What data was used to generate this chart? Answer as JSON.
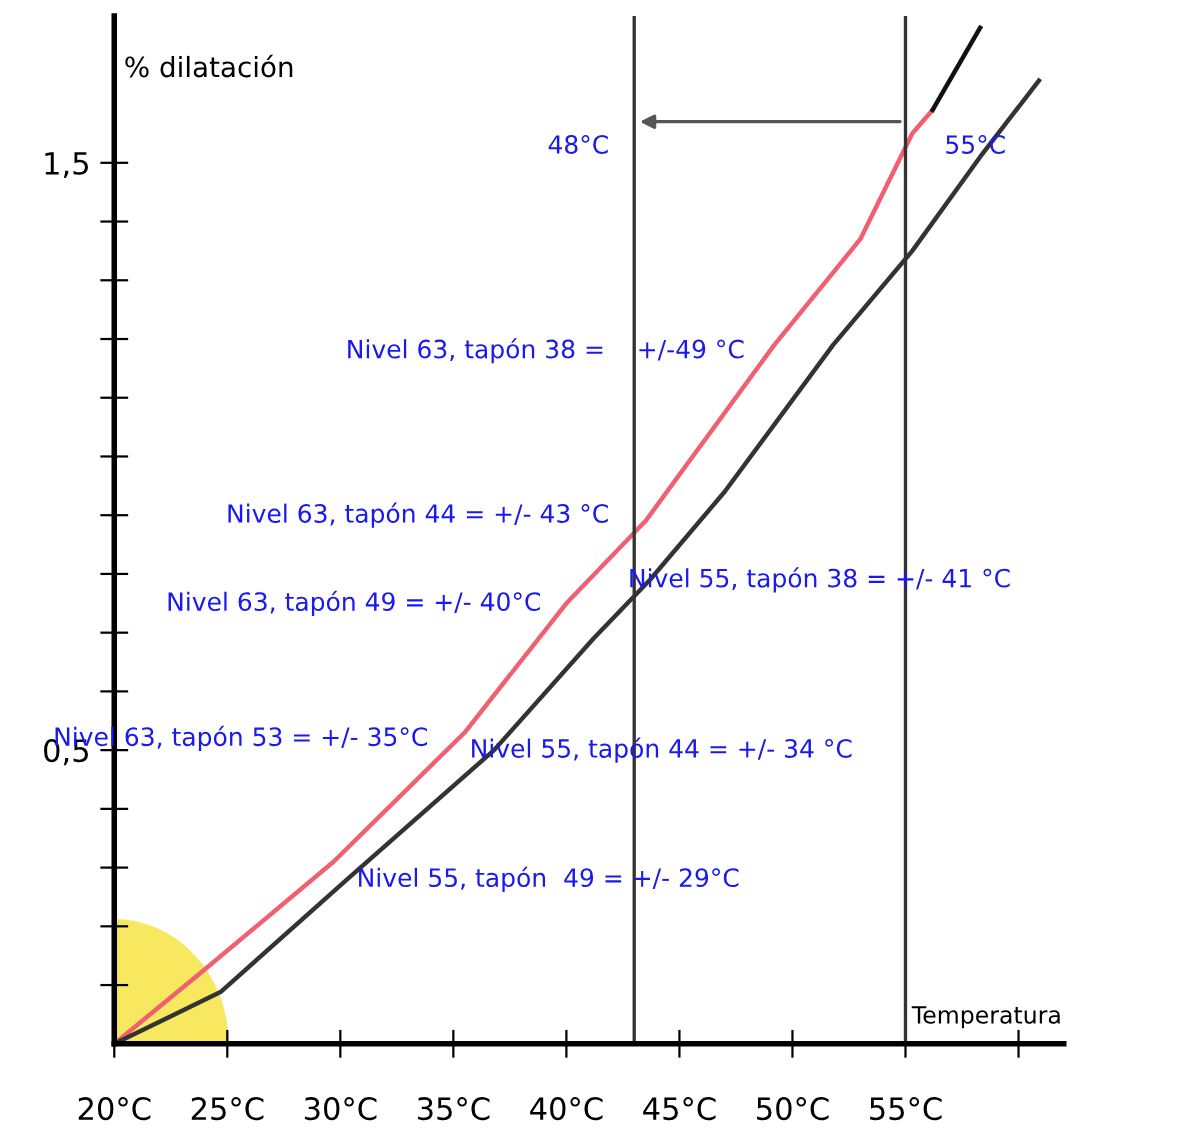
{
  "chart_data": {
    "type": "line",
    "xlabel": "Temperatura",
    "ylabel": "% dilatación",
    "x": [
      20,
      23.8,
      29.7,
      35.5,
      40,
      43.5,
      49.2,
      53,
      55.3,
      56.2
    ],
    "series": [
      {
        "color": "#f06070",
        "values": [
          0,
          0.12,
          0.31,
          0.53,
          0.75,
          0.89,
          1.19,
          1.37,
          1.55,
          1.59
        ]
      },
      {
        "color": "#111111",
        "x": [
          56.2,
          58.3
        ],
        "values": [
          1.59,
          1.73
        ]
      },
      {
        "color": "#333333",
        "x": [
          20,
          24.7,
          30.3,
          36.8,
          41.2,
          43.7,
          47,
          51.8,
          55.3,
          58.3,
          60.9
        ],
        "values": [
          0,
          0.088,
          0.28,
          0.5,
          0.69,
          0.79,
          0.94,
          1.19,
          1.35,
          1.51,
          1.64
        ]
      }
    ],
    "xlim": [
      20,
      62
    ],
    "ylim": [
      0,
      1.75
    ],
    "xticks": [
      {
        "value": 20,
        "label": "20°C"
      },
      {
        "value": 25,
        "label": "25°C"
      },
      {
        "value": 30,
        "label": "30°C"
      },
      {
        "value": 35,
        "label": "35°C"
      },
      {
        "value": 40,
        "label": "40°C"
      },
      {
        "value": 45,
        "label": "45°C"
      },
      {
        "value": 50,
        "label": "50°C"
      },
      {
        "value": 55,
        "label": "55°C"
      },
      {
        "value": 60,
        "label": null
      }
    ],
    "yticks": [
      {
        "value": 0.1,
        "label": null
      },
      {
        "value": 0.2,
        "label": null
      },
      {
        "value": 0.3,
        "label": null
      },
      {
        "value": 0.4,
        "label": null
      },
      {
        "value": 0.5,
        "label": "0,5"
      },
      {
        "value": 0.6,
        "label": null
      },
      {
        "value": 0.7,
        "label": null
      },
      {
        "value": 0.8,
        "label": null
      },
      {
        "value": 0.9,
        "label": null
      },
      {
        "value": 1.0,
        "label": null
      },
      {
        "value": 1.1,
        "label": null
      },
      {
        "value": 1.2,
        "label": null
      },
      {
        "value": 1.3,
        "label": null
      },
      {
        "value": 1.4,
        "label": null
      },
      {
        "value": 1.5,
        "label": "1,5"
      }
    ],
    "ref_lines": [
      {
        "axis": "x",
        "value": 43,
        "color": "#333333"
      },
      {
        "axis": "x",
        "value": 55,
        "color": "#333333"
      }
    ],
    "annotations": [
      {
        "text": "Nivel 63, tapón 38 =    +/-49 °C",
        "x": 49,
        "y": 1.18
      },
      {
        "text": "Nivel 63, tapón 44 = +/- 43 °C",
        "x": 43,
        "y": 0.9
      },
      {
        "text": "Nivel 63, tapón 49 = +/- 40°C",
        "x": 40,
        "y": 0.75
      },
      {
        "text": "Nivel 63, tapón 53 = +/- 35°C",
        "x": 35,
        "y": 0.52
      },
      {
        "text": "48°C",
        "x": 43,
        "y": 1.57
      },
      {
        "text": "Nivel 55, tapón 38 = +/- 41 °C",
        "x": 41,
        "y": 0.79
      },
      {
        "text": "Nivel 55, tapón 44 = +/- 34 °C",
        "x": 34,
        "y": 0.5
      },
      {
        "text": "Nivel 55, tapón  49 = +/- 29°C",
        "x": 29,
        "y": 0.28
      },
      {
        "text": "55°C",
        "x": 55,
        "y": 1.57
      }
    ],
    "grid": false
  }
}
